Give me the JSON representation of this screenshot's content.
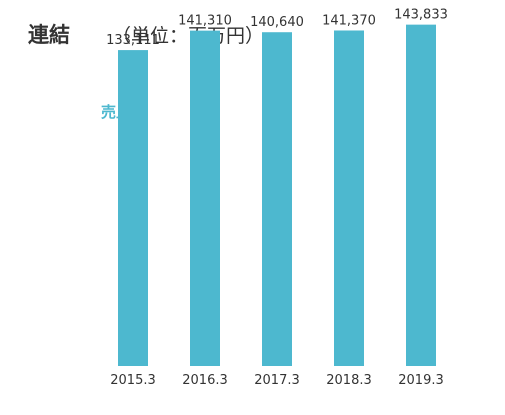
{
  "header": {
    "title": "連結",
    "unit": "（単位：百万円）"
  },
  "colors": {
    "bar": "#4DB8CF",
    "series_label": "#4DB8CF"
  },
  "chart_data": {
    "type": "bar",
    "series_label": "売上高",
    "categories": [
      "2015.3",
      "2016.3",
      "2017.3",
      "2018.3",
      "2019.3"
    ],
    "values": [
      133111,
      141310,
      140640,
      141370,
      143833
    ],
    "value_labels": [
      "133,111",
      "141,310",
      "140,640",
      "141,370",
      "143,833"
    ],
    "ylim": [
      0,
      150000
    ],
    "grid": false,
    "legend": "none"
  }
}
